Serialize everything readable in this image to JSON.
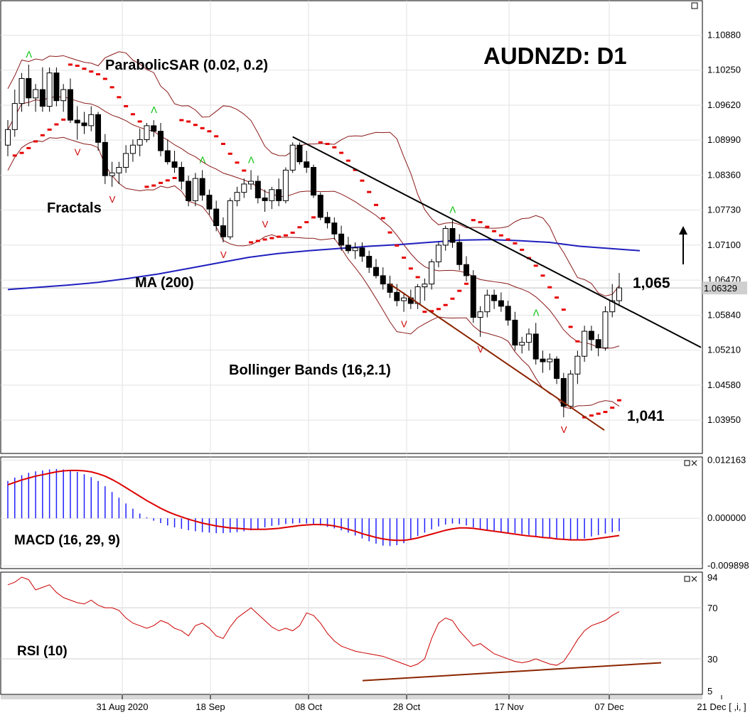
{
  "chart_data": {
    "type": "candlestick",
    "title": "AUDNZD: D1",
    "annotations": {
      "target_high": "1,065",
      "target_low": "1,041",
      "indicator_labels": [
        "ParabolicSAR (0.02, 0.2)",
        "Fractals",
        "MA (200)",
        "Bollinger Bands (16,2.1)"
      ]
    },
    "price_axis": {
      "ticks": [
        "1.10880",
        "1.10250",
        "1.09620",
        "1.08990",
        "1.08360",
        "1.07730",
        "1.07100",
        "1.06470",
        "1.05840",
        "1.05210",
        "1.04580",
        "1.03950"
      ],
      "current_price": "1.06329",
      "ylim": [
        1.0335,
        1.115
      ]
    },
    "date_axis": {
      "labels": [
        "31 Aug 2020",
        "18 Sep",
        "08 Oct",
        "28 Oct",
        "17 Nov",
        "07 Dec",
        "21 Dec [ ,i, ]"
      ]
    },
    "candles": [
      [
        1.089,
        1.0935,
        1.087,
        1.0918
      ],
      [
        1.0918,
        1.099,
        1.0905,
        1.0965
      ],
      [
        1.0965,
        1.102,
        1.095,
        1.101
      ],
      [
        1.101,
        1.1035,
        1.096,
        1.0975
      ],
      [
        1.0975,
        1.1,
        1.095,
        1.099
      ],
      [
        1.099,
        1.103,
        1.095,
        1.096
      ],
      [
        1.096,
        1.103,
        1.095,
        1.102
      ],
      [
        1.102,
        1.103,
        1.096,
        1.097
      ],
      [
        1.097,
        1.1,
        1.095,
        1.099
      ],
      [
        1.099,
        1.101,
        1.093,
        1.0935
      ],
      [
        1.0935,
        1.096,
        1.09,
        1.093
      ],
      [
        1.093,
        1.095,
        1.091,
        1.0925
      ],
      [
        1.0925,
        1.096,
        1.0915,
        1.0945
      ],
      [
        1.0945,
        1.095,
        1.088,
        1.0895
      ],
      [
        1.0895,
        1.091,
        1.082,
        1.0835
      ],
      [
        1.0835,
        1.086,
        1.0815,
        1.084
      ],
      [
        1.084,
        1.086,
        1.082,
        1.085
      ],
      [
        1.085,
        1.089,
        1.084,
        1.0875
      ],
      [
        1.0875,
        1.09,
        1.086,
        1.089
      ],
      [
        1.089,
        1.092,
        1.087,
        1.09
      ],
      [
        1.09,
        1.093,
        1.0895,
        1.0925
      ],
      [
        1.0925,
        1.0935,
        1.0905,
        1.0915
      ],
      [
        1.0915,
        1.093,
        1.087,
        1.088
      ],
      [
        1.088,
        1.09,
        1.0855,
        1.086
      ],
      [
        1.086,
        1.088,
        1.084,
        1.085
      ],
      [
        1.085,
        1.086,
        1.081,
        1.0825
      ],
      [
        1.0825,
        1.0835,
        1.078,
        1.079
      ],
      [
        1.079,
        1.084,
        1.078,
        1.083
      ],
      [
        1.083,
        1.0845,
        1.079,
        1.08
      ],
      [
        1.08,
        1.081,
        1.0765,
        1.0775
      ],
      [
        1.0775,
        1.079,
        1.0735,
        1.0745
      ],
      [
        1.0745,
        1.076,
        1.0715,
        1.0725
      ],
      [
        1.0725,
        1.0795,
        1.072,
        1.079
      ],
      [
        1.079,
        1.0815,
        1.078,
        1.0805
      ],
      [
        1.0805,
        1.083,
        1.0795,
        1.082
      ],
      [
        1.082,
        1.0845,
        1.081,
        1.0825
      ],
      [
        1.0825,
        1.0835,
        1.0785,
        1.0795
      ],
      [
        1.0795,
        1.081,
        1.077,
        1.079
      ],
      [
        1.079,
        1.0815,
        1.0775,
        1.081
      ],
      [
        1.081,
        1.083,
        1.078,
        1.079
      ],
      [
        1.079,
        1.085,
        1.0785,
        1.0845
      ],
      [
        1.0845,
        1.0895,
        1.084,
        1.089
      ],
      [
        1.089,
        1.0895,
        1.0855,
        1.086
      ],
      [
        1.086,
        1.088,
        1.084,
        1.085
      ],
      [
        1.085,
        1.0855,
        1.0795,
        1.08
      ],
      [
        1.08,
        1.0805,
        1.0755,
        1.076
      ],
      [
        1.076,
        1.077,
        1.074,
        1.075
      ],
      [
        1.075,
        1.076,
        1.072,
        1.073
      ],
      [
        1.073,
        1.0745,
        1.07,
        1.071
      ],
      [
        1.071,
        1.0725,
        1.0695,
        1.07
      ],
      [
        1.07,
        1.0715,
        1.0685,
        1.0705
      ],
      [
        1.0705,
        1.0715,
        1.068,
        1.069
      ],
      [
        1.069,
        1.07,
        1.066,
        1.067
      ],
      [
        1.067,
        1.0685,
        1.065,
        1.0655
      ],
      [
        1.0655,
        1.067,
        1.063,
        1.064
      ],
      [
        1.064,
        1.0655,
        1.0615,
        1.0625
      ],
      [
        1.0625,
        1.064,
        1.06,
        1.061
      ],
      [
        1.061,
        1.0625,
        1.059,
        1.0615
      ],
      [
        1.0615,
        1.063,
        1.0595,
        1.0605
      ],
      [
        1.0605,
        1.064,
        1.0595,
        1.0635
      ],
      [
        1.0635,
        1.065,
        1.061,
        1.064
      ],
      [
        1.064,
        1.0685,
        1.063,
        1.068
      ],
      [
        1.068,
        1.0715,
        1.067,
        1.071
      ],
      [
        1.071,
        1.0745,
        1.07,
        1.074
      ],
      [
        1.074,
        1.0755,
        1.0705,
        1.0715
      ],
      [
        1.0715,
        1.073,
        1.0665,
        1.0675
      ],
      [
        1.0675,
        1.069,
        1.0645,
        1.0655
      ],
      [
        1.0655,
        1.0665,
        1.057,
        1.058
      ],
      [
        1.058,
        1.06,
        1.0545,
        1.059
      ],
      [
        1.059,
        1.063,
        1.058,
        1.062
      ],
      [
        1.062,
        1.063,
        1.0595,
        1.061
      ],
      [
        1.061,
        1.0625,
        1.059,
        1.06
      ],
      [
        1.06,
        1.061,
        1.0565,
        1.0575
      ],
      [
        1.0575,
        1.059,
        1.052,
        1.053
      ],
      [
        1.053,
        1.0545,
        1.0515,
        1.0535
      ],
      [
        1.0535,
        1.056,
        1.052,
        1.055
      ],
      [
        1.055,
        1.057,
        1.0495,
        1.0505
      ],
      [
        1.0505,
        1.052,
        1.048,
        1.05
      ],
      [
        1.05,
        1.0515,
        1.0485,
        1.0505
      ],
      [
        1.0505,
        1.051,
        1.046,
        1.047
      ],
      [
        1.047,
        1.048,
        1.04,
        1.042
      ],
      [
        1.042,
        1.0485,
        1.0415,
        1.0478
      ],
      [
        1.0478,
        1.052,
        1.046,
        1.051
      ],
      [
        1.051,
        1.0565,
        1.05,
        1.0555
      ],
      [
        1.0555,
        1.0565,
        1.052,
        1.054
      ],
      [
        1.054,
        1.055,
        1.051,
        1.0525
      ],
      [
        1.0525,
        1.06,
        1.052,
        1.059
      ],
      [
        1.059,
        1.064,
        1.058,
        1.061
      ],
      [
        1.061,
        1.066,
        1.06,
        1.0633
      ]
    ],
    "ma200": [
      1.063,
      1.0634,
      1.0638,
      1.0643,
      1.065,
      1.0658,
      1.0668,
      1.0678,
      1.0688,
      1.0695,
      1.07,
      1.0704,
      1.0708,
      1.0711,
      1.0715,
      1.0719,
      1.072,
      1.0718,
      1.0715,
      1.0708,
      1.0704,
      1.07
    ],
    "macd": {
      "ticks": [
        "0.012163",
        "0.000000",
        "-0.009898"
      ],
      "ylim": [
        -0.0105,
        0.0128
      ],
      "histogram": [
        0.0078,
        0.0085,
        0.009,
        0.0095,
        0.0098,
        0.01,
        0.0102,
        0.0103,
        0.0102,
        0.01,
        0.0097,
        0.0092,
        0.0086,
        0.0078,
        0.0067,
        0.0055,
        0.0043,
        0.0031,
        0.002,
        0.001,
        0.0002,
        -0.0005,
        -0.001,
        -0.0015,
        -0.0019,
        -0.0022,
        -0.0025,
        -0.0027,
        -0.0029,
        -0.003,
        -0.0031,
        -0.0031,
        -0.003,
        -0.0029,
        -0.0027,
        -0.0025,
        -0.0022,
        -0.0019,
        -0.0016,
        -0.0014,
        -0.0012,
        -0.0011,
        -0.001,
        -0.0011,
        -0.0013,
        -0.0015,
        -0.0018,
        -0.0021,
        -0.0025,
        -0.003,
        -0.0036,
        -0.0042,
        -0.0048,
        -0.0053,
        -0.0057,
        -0.0058,
        -0.0056,
        -0.0052,
        -0.0045,
        -0.0037,
        -0.003,
        -0.0023,
        -0.0017,
        -0.0013,
        -0.0011,
        -0.0012,
        -0.0015,
        -0.0019,
        -0.0023,
        -0.0026,
        -0.0028,
        -0.0029,
        -0.003,
        -0.0031,
        -0.0033,
        -0.0035,
        -0.0037,
        -0.0039,
        -0.0041,
        -0.0043,
        -0.0045,
        -0.0046,
        -0.0045,
        -0.0042,
        -0.0038,
        -0.0035,
        -0.0032,
        -0.0029,
        -0.0027
      ],
      "signal": [
        0.007,
        0.0075,
        0.008,
        0.0084,
        0.0088,
        0.0091,
        0.0094,
        0.0097,
        0.0099,
        0.01,
        0.01,
        0.0099,
        0.0097,
        0.0093,
        0.0088,
        0.0081,
        0.0073,
        0.0064,
        0.0055,
        0.0046,
        0.0037,
        0.0029,
        0.0021,
        0.0014,
        0.0008,
        0.0003,
        -0.0002,
        -0.0006,
        -0.001,
        -0.0013,
        -0.0016,
        -0.0018,
        -0.002,
        -0.0021,
        -0.0022,
        -0.0023,
        -0.0023,
        -0.0023,
        -0.0022,
        -0.0021,
        -0.0019,
        -0.0017,
        -0.0015,
        -0.0014,
        -0.0013,
        -0.0013,
        -0.0014,
        -0.0016,
        -0.0019,
        -0.0023,
        -0.0027,
        -0.0032,
        -0.0036,
        -0.004,
        -0.0043,
        -0.0045,
        -0.0046,
        -0.0046,
        -0.0044,
        -0.0041,
        -0.0037,
        -0.0033,
        -0.0029,
        -0.0025,
        -0.0022,
        -0.002,
        -0.002,
        -0.0021,
        -0.0023,
        -0.0025,
        -0.0027,
        -0.0029,
        -0.0031,
        -0.0033,
        -0.0035,
        -0.0037,
        -0.0038,
        -0.004,
        -0.0041,
        -0.0043,
        -0.0044,
        -0.0045,
        -0.0045,
        -0.0045,
        -0.0044,
        -0.0042,
        -0.004,
        -0.0038,
        -0.0036
      ],
      "label": "MACD (16, 29, 9)"
    },
    "rsi": {
      "ticks": [
        "94",
        "70",
        "30",
        "5"
      ],
      "ylim": [
        5,
        94
      ],
      "values": [
        88,
        90,
        94,
        92,
        84,
        86,
        88,
        82,
        78,
        76,
        74,
        73,
        76,
        72,
        70,
        70,
        68,
        62,
        58,
        56,
        54,
        56,
        60,
        58,
        54,
        52,
        48,
        56,
        58,
        54,
        48,
        46,
        55,
        62,
        66,
        70,
        65,
        60,
        55,
        52,
        54,
        52,
        56,
        66,
        64,
        58,
        50,
        44,
        40,
        38,
        36,
        35,
        34,
        33,
        32,
        30,
        28,
        26,
        24,
        26,
        30,
        46,
        58,
        62,
        60,
        52,
        46,
        40,
        42,
        38,
        34,
        32,
        30,
        28,
        27,
        28,
        30,
        28,
        26,
        25,
        28,
        36,
        45,
        52,
        56,
        58,
        60,
        64,
        67
      ],
      "label": "RSI (10)"
    },
    "colors": {
      "bull": "#ffffff",
      "bear": "#000000",
      "ma": "#1f1fbf",
      "bb": "#8b1a1a",
      "sar": "#e60000",
      "fractal_up": "#00c000",
      "fractal_down": "#cc0000",
      "macd_hist": "#2020ff",
      "macd_signal": "#dd0000",
      "rsi_line": "#cc0000",
      "support": "#8b2500",
      "resistance": "#000000"
    }
  }
}
